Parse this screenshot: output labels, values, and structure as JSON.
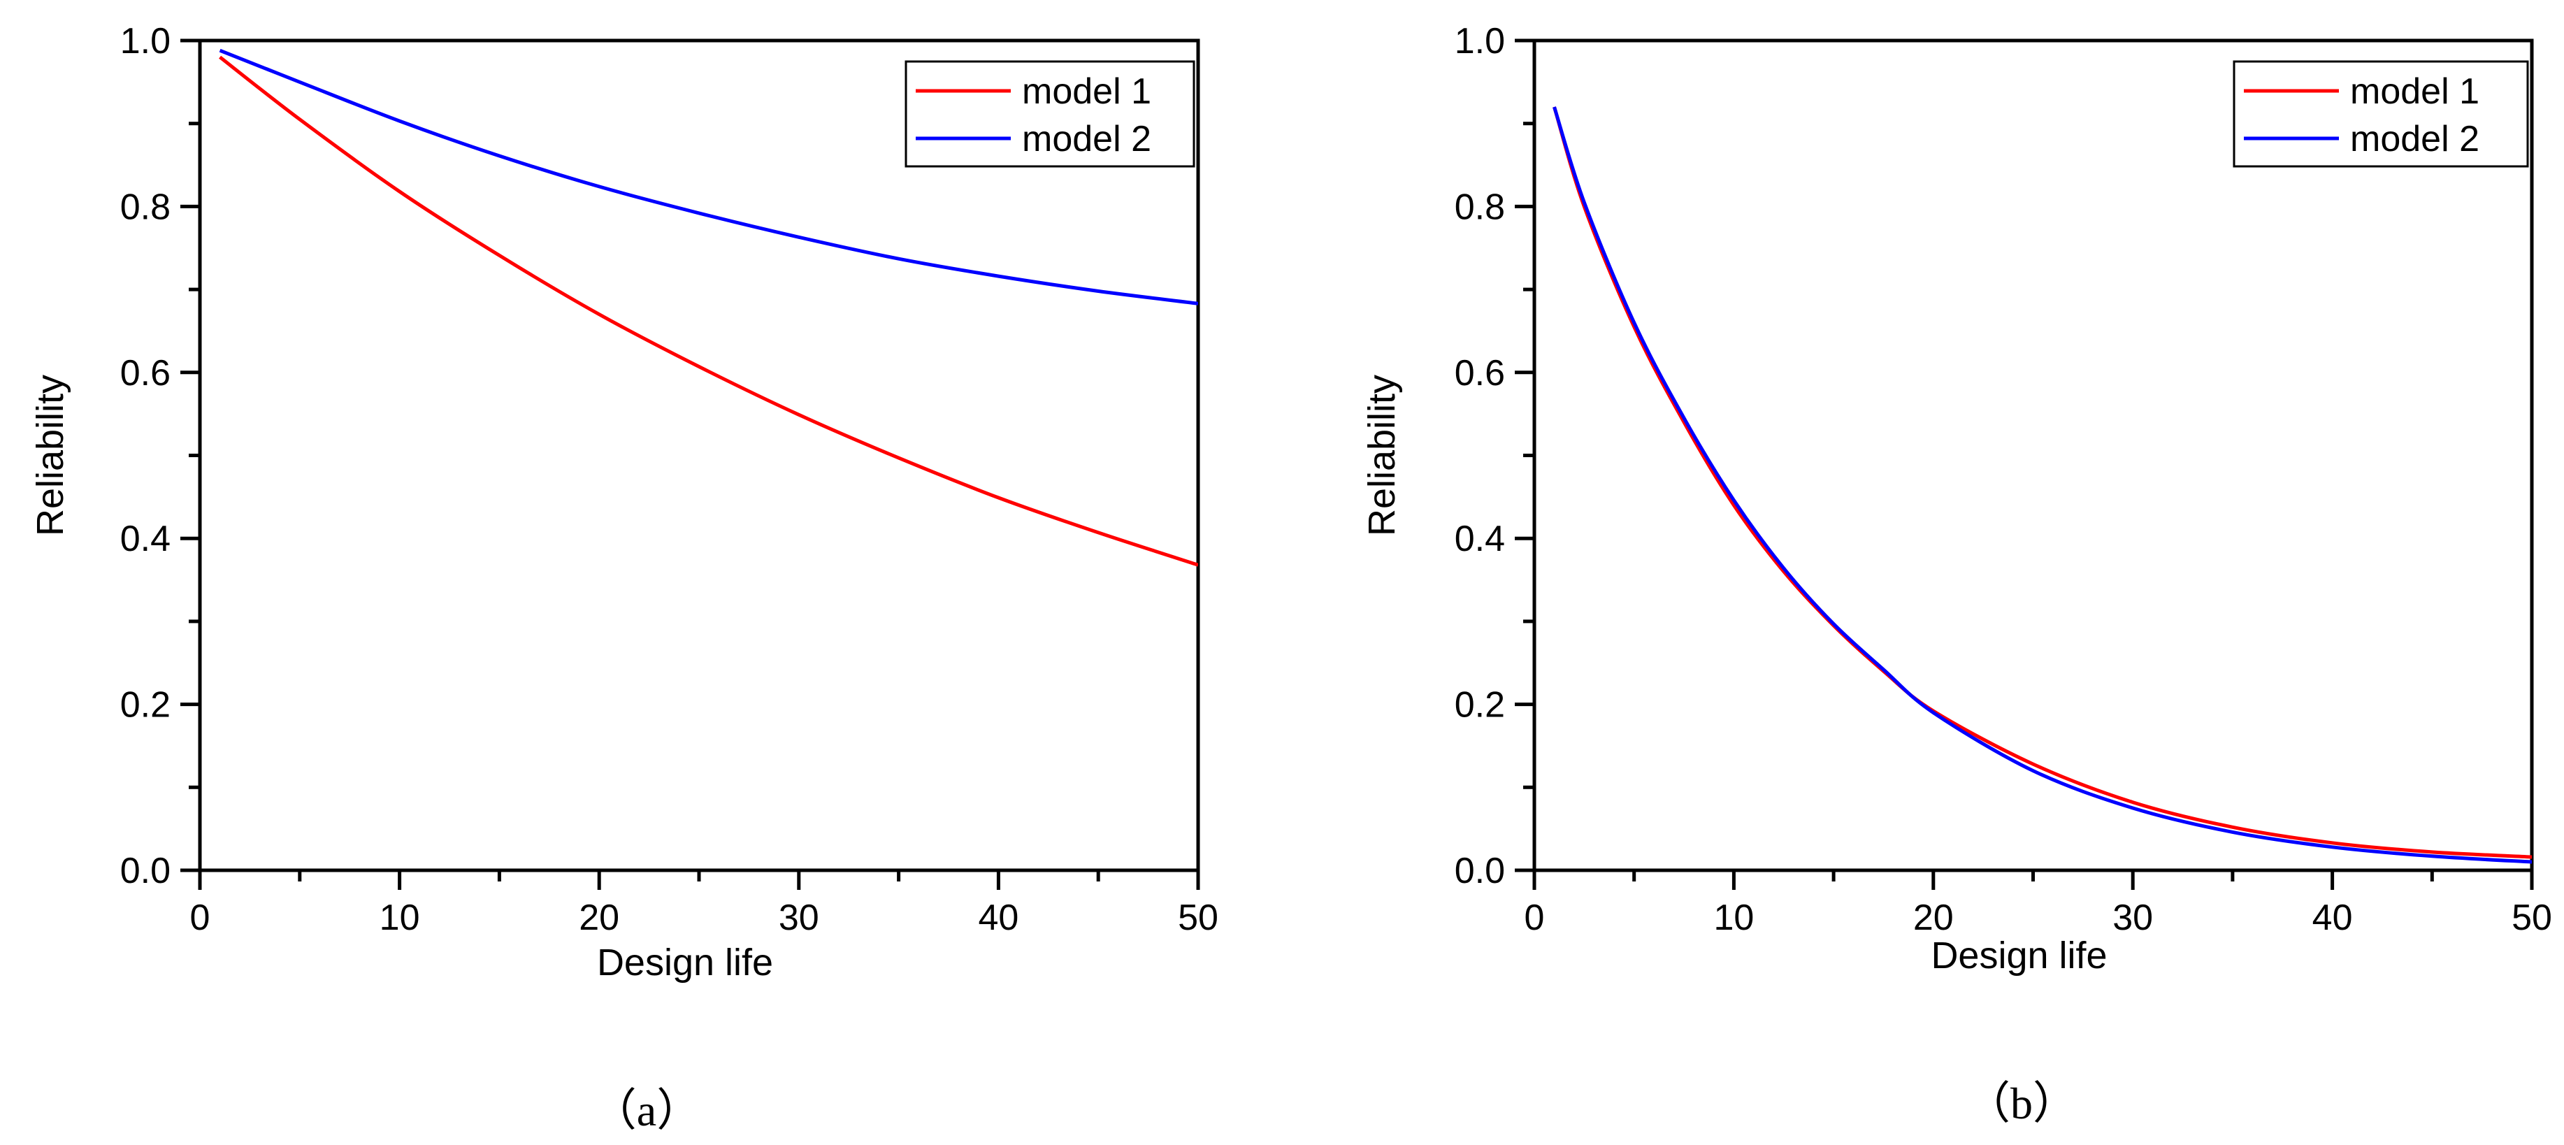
{
  "chart_data": [
    {
      "type": "line",
      "panel": "a",
      "caption": "（a）",
      "title": "",
      "xlabel": "Design life",
      "ylabel": "Reliability",
      "xlim": [
        0,
        50
      ],
      "ylim": [
        0,
        1.0
      ],
      "xticks": [
        0,
        10,
        20,
        30,
        40,
        50
      ],
      "xtick_labels": [
        "0",
        "10",
        "20",
        "30",
        "40",
        "50"
      ],
      "yticks": [
        0,
        0.2,
        0.4,
        0.6,
        0.8,
        1.0
      ],
      "ytick_labels": [
        "0.0",
        "0.2",
        "0.4",
        "0.6",
        "0.8",
        "1.0"
      ],
      "grid": false,
      "legend_position": "top-right",
      "series": [
        {
          "name": "model 1",
          "color": "#ff0000",
          "x": [
            1,
            5,
            10,
            15,
            20,
            25,
            30,
            35,
            40,
            45,
            50
          ],
          "y": [
            0.98,
            0.905,
            0.818,
            0.741,
            0.67,
            0.607,
            0.549,
            0.497,
            0.449,
            0.407,
            0.368
          ]
        },
        {
          "name": "model 2",
          "color": "#0000ff",
          "x": [
            1,
            5,
            10,
            15,
            20,
            25,
            30,
            35,
            40,
            45,
            50
          ],
          "y": [
            0.988,
            0.95,
            0.903,
            0.861,
            0.824,
            0.792,
            0.763,
            0.737,
            0.716,
            0.698,
            0.683
          ]
        }
      ]
    },
    {
      "type": "line",
      "panel": "b",
      "caption": "（b）",
      "title": "",
      "xlabel": "Design life",
      "ylabel": "Reliability",
      "xlim": [
        0,
        50
      ],
      "ylim": [
        0,
        1.0
      ],
      "xticks": [
        0,
        10,
        20,
        30,
        40,
        50
      ],
      "xtick_labels": [
        "0",
        "10",
        "20",
        "30",
        "40",
        "50"
      ],
      "yticks": [
        0,
        0.2,
        0.4,
        0.6,
        0.8,
        1.0
      ],
      "ytick_labels": [
        "0.0",
        "0.2",
        "0.4",
        "0.6",
        "0.8",
        "1.0"
      ],
      "grid": false,
      "legend_position": "top-right",
      "series": [
        {
          "name": "model 1",
          "color": "#ff0000",
          "x": [
            1,
            2.5,
            5,
            7.5,
            10,
            12.5,
            15,
            17.5,
            20,
            25,
            30,
            35,
            40,
            45,
            50
          ],
          "y": [
            0.92,
            0.8,
            0.655,
            0.54,
            0.44,
            0.36,
            0.295,
            0.24,
            0.192,
            0.128,
            0.082,
            0.052,
            0.033,
            0.022,
            0.016
          ]
        },
        {
          "name": "model 2",
          "color": "#0000ff",
          "x": [
            1,
            2.5,
            5,
            7.5,
            10,
            12.5,
            15,
            17.5,
            20,
            25,
            30,
            35,
            40,
            45,
            50
          ],
          "y": [
            0.92,
            0.805,
            0.66,
            0.545,
            0.446,
            0.364,
            0.297,
            0.242,
            0.19,
            0.12,
            0.075,
            0.046,
            0.028,
            0.017,
            0.01
          ]
        }
      ]
    }
  ]
}
